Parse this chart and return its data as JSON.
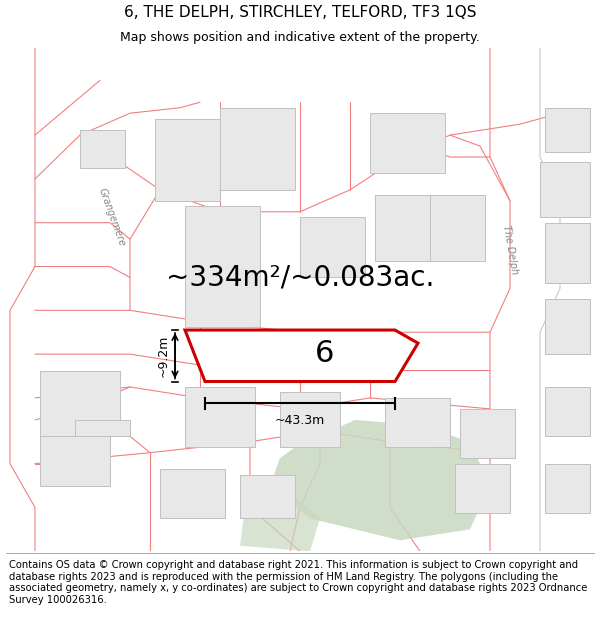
{
  "title_line1": "6, THE DELPH, STIRCHLEY, TELFORD, TF3 1QS",
  "title_line2": "Map shows position and indicative extent of the property.",
  "footer_text": "Contains OS data © Crown copyright and database right 2021. This information is subject to Crown copyright and database rights 2023 and is reproduced with the permission of HM Land Registry. The polygons (including the associated geometry, namely x, y co-ordinates) are subject to Crown copyright and database rights 2023 Ordnance Survey 100026316.",
  "area_text": "~334m²/~0.083ac.",
  "width_label": "~43.3m",
  "height_label": "~9.2m",
  "plot_number": "6",
  "map_bg": "#ffffff",
  "plot_line_color": "#f08080",
  "plot_fill_color": "#ffffff",
  "building_fill": "#e8e8e8",
  "building_border": "#c0c0c0",
  "green_fill": "#c8d8c0",
  "main_plot_color": "#cc0000",
  "dim_line_color": "#000000",
  "street_label_color": "#888888",
  "title_fontsize": 11,
  "subtitle_fontsize": 9,
  "footer_fontsize": 7.2,
  "label_fontsize": 10,
  "area_fontsize": 20
}
